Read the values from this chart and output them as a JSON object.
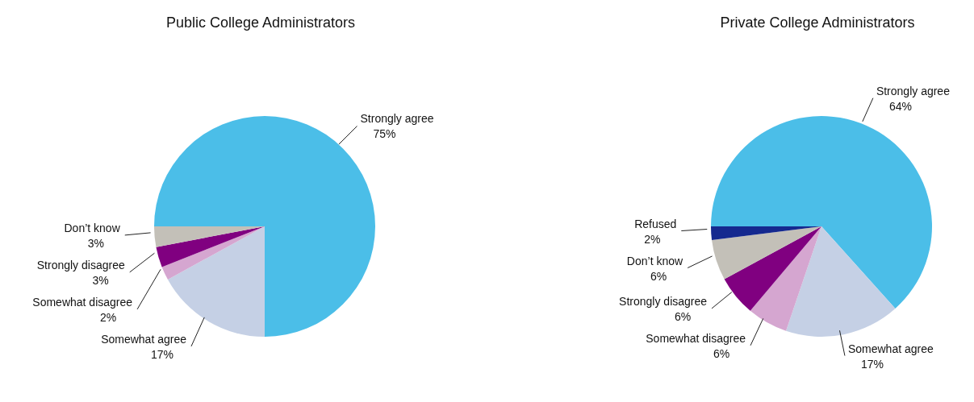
{
  "chart_data": [
    {
      "type": "pie",
      "title": "Public College Administrators",
      "categories": [
        "Strongly agree",
        "Somewhat agree",
        "Somewhat disagree",
        "Strongly disagree",
        "Don’t know"
      ],
      "values": [
        75,
        17,
        2,
        3,
        3
      ],
      "value_labels": [
        "75%",
        "17%",
        "2%",
        "3%",
        "3%"
      ],
      "colors": [
        "#4bbee8",
        "#c5d0e5",
        "#d5a6d0",
        "#800080",
        "#c3c0b8"
      ],
      "legend": false
    },
    {
      "type": "pie",
      "title": "Private College Administrators",
      "categories": [
        "Strongly agree",
        "Somewhat agree",
        "Somewhat disagree",
        "Strongly disagree",
        "Don’t know",
        "Refused"
      ],
      "values": [
        64,
        17,
        6,
        6,
        6,
        2
      ],
      "value_labels": [
        "64%",
        "17%",
        "6%",
        "6%",
        "6%",
        "2%"
      ],
      "colors": [
        "#4bbee8",
        "#c5d0e5",
        "#d5a6d0",
        "#800080",
        "#c3c0b8",
        "#15298f"
      ],
      "legend": false
    }
  ]
}
